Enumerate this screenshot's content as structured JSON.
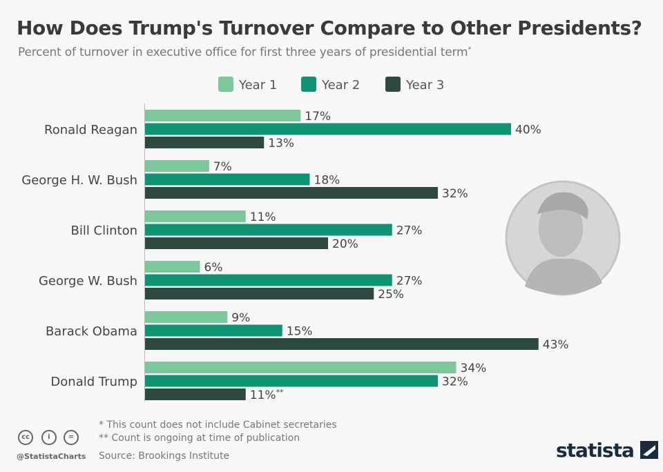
{
  "title": "How Does Trump's Turnover Compare to Other Presidents?",
  "subtitle": "Percent of turnover in executive office for first three years of presidential term",
  "subtitle_mark": "*",
  "footnotes": [
    "*   This count does not include Cabinet secretaries",
    "** Count is ongoing at time of publication"
  ],
  "source": "Source: Brookings Institute",
  "handle": "@StatistaCharts",
  "logo": "statista",
  "license_icons": [
    "cc-icon",
    "attribution-icon",
    "no-derivatives-icon"
  ],
  "chart_data": {
    "type": "bar",
    "orientation": "horizontal",
    "categories": [
      "Ronald Reagan",
      "George H. W. Bush",
      "Bill Clinton",
      "George W. Bush",
      "Barack Obama",
      "Donald Trump"
    ],
    "series": [
      {
        "name": "Year 1",
        "color": "#7cc79c",
        "values": [
          17,
          7,
          11,
          6,
          9,
          34
        ]
      },
      {
        "name": "Year 2",
        "color": "#0f9473",
        "values": [
          40,
          18,
          27,
          27,
          15,
          32
        ]
      },
      {
        "name": "Year 3",
        "color": "#2e4a3e",
        "values": [
          13,
          32,
          20,
          25,
          43,
          11
        ]
      }
    ],
    "value_suffix": "%",
    "annotations": [
      {
        "category": "Donald Trump",
        "series": "Year 3",
        "mark": "**"
      }
    ],
    "legend": "top",
    "grid": false
  }
}
